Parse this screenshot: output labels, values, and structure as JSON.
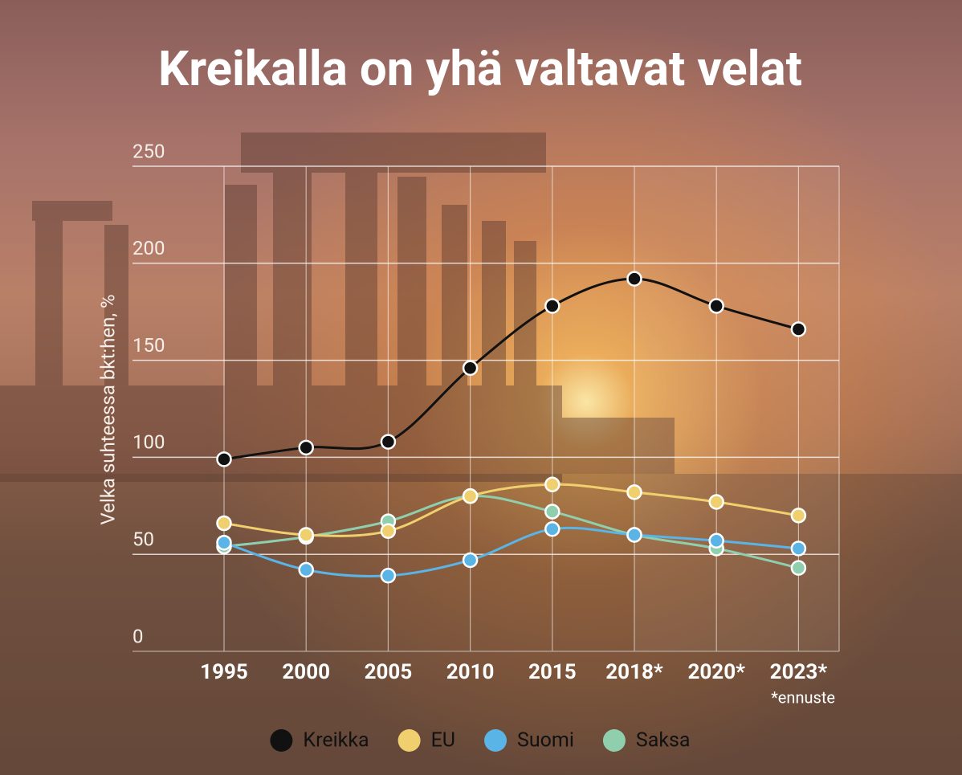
{
  "chart_data": {
    "type": "line",
    "title": "Kreikalla on yhä valtavat velat",
    "ylabel": "Velka suhteessa bkt:hen, %",
    "annotation": "*ennuste",
    "categories": [
      "1995",
      "2000",
      "2005",
      "2010",
      "2015",
      "2018*",
      "2020*",
      "2023*"
    ],
    "series": [
      {
        "name": "Kreikka",
        "color": "#111111",
        "values": [
          99,
          105,
          108,
          146,
          178,
          192,
          178,
          166
        ]
      },
      {
        "name": "EU",
        "color": "#f0cf6e",
        "values": [
          66,
          60,
          62,
          80,
          86,
          82,
          77,
          70
        ]
      },
      {
        "name": "Suomi",
        "color": "#5ab4e6",
        "values": [
          56,
          42,
          39,
          47,
          63,
          60,
          57,
          53
        ]
      },
      {
        "name": "Saksa",
        "color": "#8fcfae",
        "values": [
          54,
          59,
          67,
          80,
          72,
          60,
          53,
          43
        ]
      }
    ],
    "ylim": [
      0,
      250
    ],
    "yticks": [
      0,
      50,
      100,
      150,
      200,
      250
    ],
    "grid": true,
    "legend": "bottom"
  }
}
